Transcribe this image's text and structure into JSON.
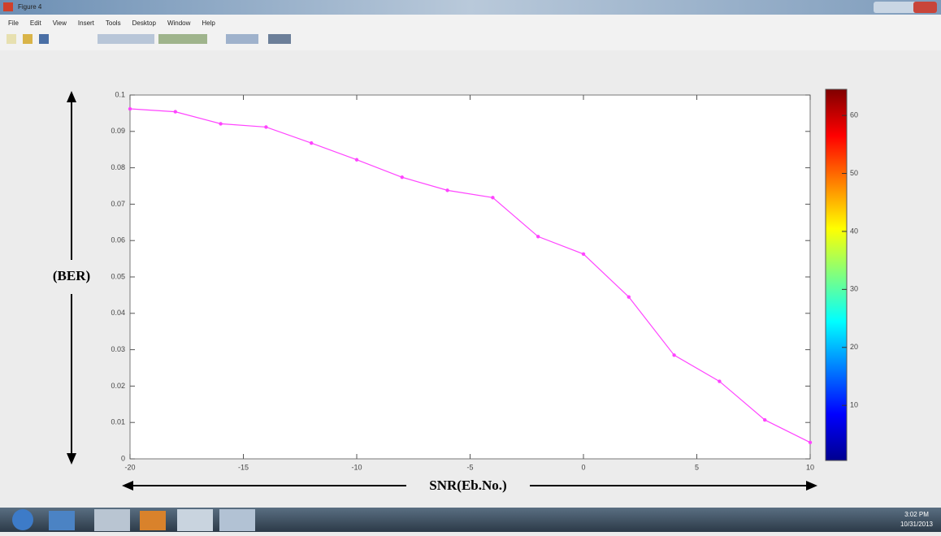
{
  "window": {
    "title": "Figure 4",
    "menu": [
      "File",
      "Edit",
      "View",
      "Insert",
      "Tools",
      "Desktop",
      "Window",
      "Help"
    ]
  },
  "chart_data": {
    "type": "line",
    "x": [
      -20,
      -18,
      -16,
      -14,
      -12,
      -10,
      -8,
      -6,
      -4,
      -2,
      0,
      2,
      4,
      6,
      8,
      10
    ],
    "series": [
      {
        "color": "#ff44ff",
        "values": [
          0.0962,
          0.0954,
          0.0921,
          0.0912,
          0.0868,
          0.0822,
          0.0774,
          0.0738,
          0.0718,
          0.0611,
          0.0563,
          0.0445,
          0.0285,
          0.0213,
          0.0107,
          0.0045
        ]
      }
    ],
    "xlim": [
      -20,
      10
    ],
    "xticks": [
      -20,
      -15,
      -10,
      -5,
      0,
      5,
      10
    ],
    "ylim": [
      0,
      0.1
    ],
    "yticks": [
      0,
      0.01,
      0.02,
      0.03,
      0.04,
      0.05,
      0.06,
      0.07,
      0.08,
      0.09,
      0.1
    ],
    "y_label": "(BER)",
    "x_label": "SNR(Eb.No.)",
    "colorbar": {
      "ylim": [
        0.5,
        64.5
      ],
      "yticks": [
        10,
        20,
        30,
        40,
        50,
        60
      ]
    }
  },
  "taskbar": {
    "time": "3:02 PM",
    "date": "10/31/2013"
  }
}
